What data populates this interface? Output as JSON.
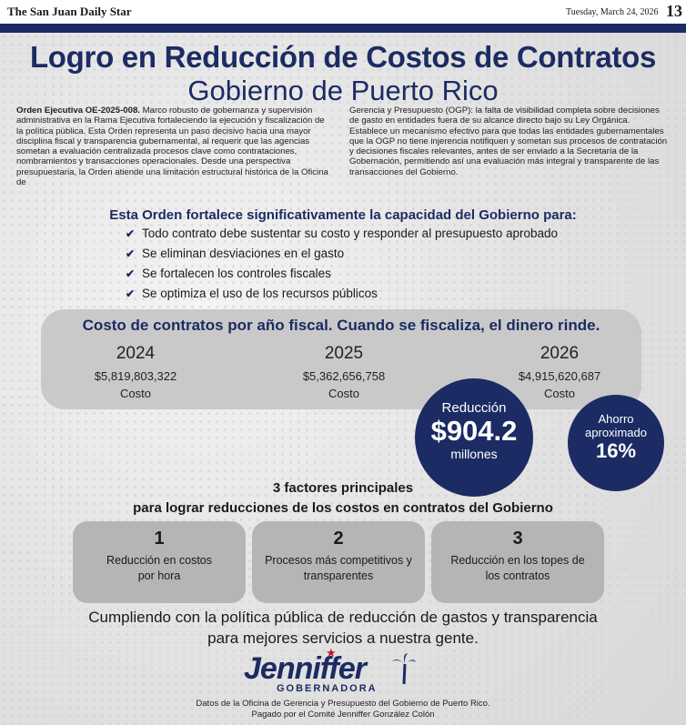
{
  "masthead": {
    "paper": "The San Juan Daily Star",
    "date": "Tuesday, March 24, 2026",
    "page": "13"
  },
  "header": {
    "title": "Logro en Reducción de Costos de Contratos",
    "subtitle": "Gobierno de Puerto Rico"
  },
  "body": {
    "lead_bold": "Orden Ejecutiva OE-2025-008.",
    "left_text": " Marco robusto de gobernanza y supervisión administrativa en la Rama Ejecutiva fortaleciendo la ejecución y fiscalización de la política pública. Esta Orden representa un paso decisivo hacia una mayor disciplina fiscal y transparencia gubernamental, al requerir que las agencias sometan a evaluación centralizada procesos clave como contrataciones, nombramientos y transacciones operacionales. Desde una perspectiva presupuestaria, la Orden atiende una limitación estructural histórica de la Oficina de",
    "right_text": "Gerencia y Presupuesto (OGP): la falta de visibilidad completa sobre decisiones de gasto en entidades fuera de su alcance directo bajo su Ley Orgánica. Establece un mecanismo efectivo para que todas las entidades gubernamentales que la OGP no tiene injerencia notifiquen y sometan sus procesos de contratación y decisiones fiscales relevantes, antes de ser enviado a la Secretaría de la Gobernación, permitiendo así una evaluación más integral y transparente de las transacciones del Gobierno."
  },
  "capacity": {
    "heading": "Esta Orden fortalece significativamente la capacidad del Gobierno para:",
    "items": [
      "Todo contrato debe sustentar su costo y responder al presupuesto aprobado",
      "Se eliminan desviaciones en el gasto",
      "Se fortalecen los controles fiscales",
      "Se optimiza el uso de los recursos públicos"
    ]
  },
  "costs": {
    "heading": "Costo de contratos por año fiscal. Cuando se fiscaliza, el dinero rinde.",
    "years": [
      {
        "year": "2024",
        "amount": "$5,819,803,322",
        "label": "Costo"
      },
      {
        "year": "2025",
        "amount": "$5,362,656,758",
        "label": "Costo"
      },
      {
        "year": "2026",
        "amount": "$4,915,620,687",
        "label": "Costo"
      }
    ]
  },
  "reduction": {
    "label": "Reducción",
    "value": "$904.2",
    "unit": "millones"
  },
  "savings": {
    "line1": "Ahorro",
    "line2": "aproximado",
    "value": "16%"
  },
  "factors": {
    "heading1": "3 factores principales",
    "heading2": "para lograr reducciones de los costos en contratos del Gobierno",
    "items": [
      {
        "number": "1",
        "text": "Reducción en costos por hora"
      },
      {
        "number": "2",
        "text": "Procesos más competitivos y transparentes"
      },
      {
        "number": "3",
        "text": "Reducción en los topes de los contratos"
      }
    ]
  },
  "closing": {
    "line1": "Cumpliendo con la política pública de reducción de gastos y transparencia",
    "line2": "para mejores servicios a nuestra gente."
  },
  "logo": {
    "name": "Jenniffer",
    "title": "GOBERNADORA"
  },
  "footer": {
    "line1": "Datos de la Oficina de Gerencia y Presupuesto del Gobierno de Puerto Rico.",
    "line2": "Pagado por el Comité Jenniffer González Colón"
  },
  "colors": {
    "navy": "#1c2b63",
    "panel": "#c9c9c9",
    "box": "#b5b5b5",
    "star": "#c8102e"
  }
}
